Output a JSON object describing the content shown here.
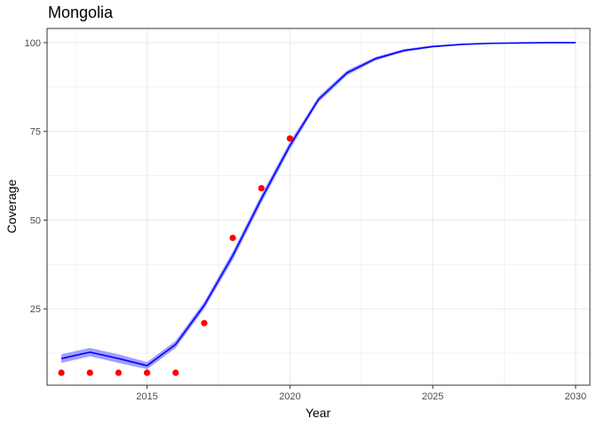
{
  "chart_data": {
    "type": "line",
    "title": "Mongolia",
    "xlabel": "Year",
    "ylabel": "Coverage",
    "xlim": [
      2011.5,
      2030.5
    ],
    "ylim": [
      3.5,
      104
    ],
    "x_ticks": [
      2015,
      2020,
      2025,
      2030
    ],
    "y_ticks": [
      25,
      50,
      75,
      100
    ],
    "grid": true,
    "legend": "none",
    "colors": {
      "line": "#0000ff",
      "band": "#9f9fff",
      "points": "#ff0000",
      "grid": "#ebebeb",
      "panel_border": "#333333"
    },
    "series": [
      {
        "kind": "line-with-band",
        "x": [
          2012,
          2013,
          2014,
          2015,
          2016,
          2017,
          2018,
          2019,
          2020,
          2021,
          2022,
          2023,
          2024,
          2025,
          2026,
          2027,
          2028,
          2029,
          2030
        ],
        "y": [
          11,
          12.8,
          11,
          9,
          15,
          26,
          40,
          56,
          71,
          84,
          91.5,
          95.5,
          97.8,
          98.9,
          99.5,
          99.8,
          99.9,
          100,
          100
        ],
        "lower": [
          9.8,
          11.6,
          9.8,
          8.0,
          14.0,
          25.0,
          38.8,
          54.8,
          69.9,
          83.2,
          90.8,
          95.0,
          97.4,
          98.6,
          99.3,
          99.7,
          99.85,
          99.95,
          99.95
        ],
        "upper": [
          12.2,
          14.0,
          12.2,
          10.0,
          16.0,
          27.0,
          41.2,
          57.2,
          72.1,
          84.8,
          92.2,
          96.0,
          98.2,
          99.2,
          99.7,
          99.9,
          99.95,
          100.05,
          100.05
        ]
      },
      {
        "kind": "points",
        "x": [
          2012,
          2013,
          2014,
          2015,
          2016,
          2017,
          2018,
          2019,
          2020
        ],
        "y": [
          7,
          7,
          7,
          7,
          7,
          21,
          45,
          59,
          73
        ]
      }
    ]
  }
}
